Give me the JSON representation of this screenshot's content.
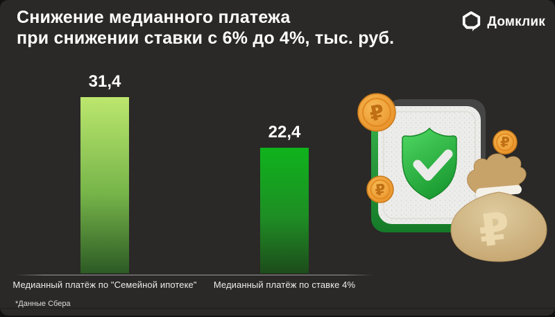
{
  "header": {
    "title_line1": "Снижение медианного платежа",
    "title_line2": "при снижении ставки с 6% до 4%, тыс. руб.",
    "brand": "Домклик"
  },
  "chart_data": {
    "type": "bar",
    "title": "Снижение медианного платежа при снижении ставки с 6% до 4%, тыс. руб.",
    "categories": [
      "Медианный платёж по \"Семейной ипотеке\"",
      "Медианный платёж по ставке 4%"
    ],
    "values": [
      31.4,
      22.4
    ],
    "value_labels": [
      "31,4",
      "22,4"
    ],
    "ylabel": "тыс. руб.",
    "ylim": [
      0,
      31.4
    ],
    "grid": false,
    "legend": false,
    "bar_gradients": [
      [
        "#bce76e",
        "#76b449",
        "#2c5a24"
      ],
      [
        "#0fb31c",
        "#1e8e24",
        "#1d4c1b"
      ]
    ]
  },
  "footnote": "*Данные Сбера",
  "colors": {
    "background": "#2a2927",
    "text": "#ffffff",
    "axis": "#9b9b9b",
    "shield_green": "#2aa83c",
    "coin_orange": "#ec9a2e",
    "bag_tan": "#d2b384"
  },
  "illustration": {
    "coin_symbol": "₽"
  }
}
